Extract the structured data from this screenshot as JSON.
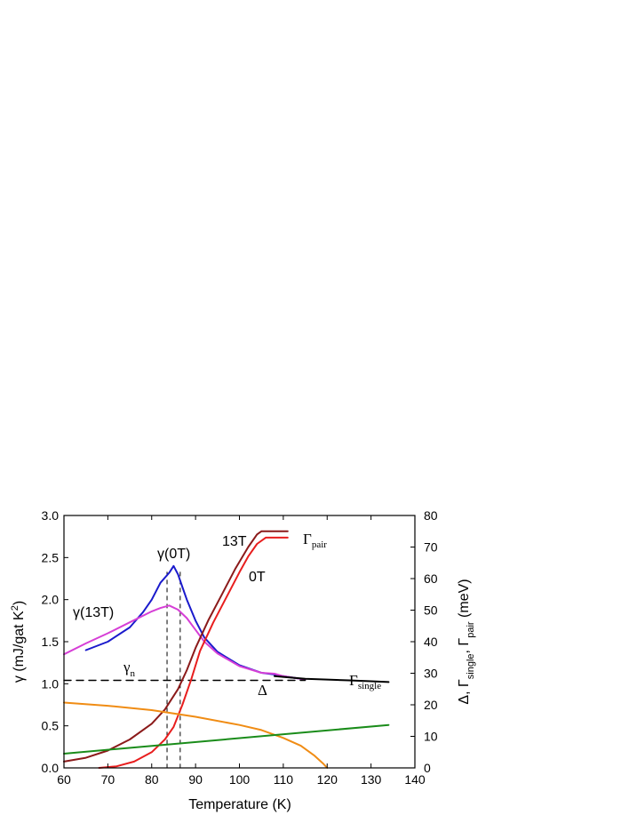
{
  "chart_data": {
    "type": "line",
    "x_axis": {
      "label": "Temperature (K)",
      "range": [
        60,
        140
      ],
      "ticks": [
        "60",
        "70",
        "80",
        "90",
        "100",
        "110",
        "120",
        "130",
        "140"
      ]
    },
    "y_axis_left": {
      "label": "γ (mJ/gat K²)",
      "label_main": "γ (mJ/gat K",
      "label_sup": "2",
      "label_end": ")",
      "range": [
        0,
        3
      ],
      "ticks": [
        "0.0",
        "0.5",
        "1.0",
        "1.5",
        "2.0",
        "2.5",
        "3.0"
      ]
    },
    "y_axis_right": {
      "label": "Δ, Γsingle, Γpair (meV)",
      "label_parts": [
        "Δ, Γ",
        "single",
        ", Γ",
        "pair",
        " (meV)"
      ],
      "range": [
        0,
        80
      ],
      "ticks": [
        "0",
        "10",
        "20",
        "30",
        "40",
        "50",
        "60",
        "70",
        "80"
      ]
    },
    "grid": false,
    "series": [
      {
        "name": "γ(0T)",
        "axis": "left",
        "color": "#1a1acc",
        "points": [
          [
            65,
            1.4
          ],
          [
            70,
            1.5
          ],
          [
            75,
            1.67
          ],
          [
            78,
            1.85
          ],
          [
            80,
            2.0
          ],
          [
            82,
            2.2
          ],
          [
            84,
            2.32
          ],
          [
            85,
            2.4
          ],
          [
            86,
            2.3
          ],
          [
            87,
            2.15
          ],
          [
            88,
            2.0
          ],
          [
            90,
            1.75
          ],
          [
            92,
            1.55
          ],
          [
            95,
            1.38
          ],
          [
            100,
            1.22
          ],
          [
            105,
            1.13
          ],
          [
            108,
            1.11
          ],
          [
            110,
            1.09
          ],
          [
            115,
            1.05
          ]
        ]
      },
      {
        "name": "γ(13T)",
        "axis": "left",
        "color": "#d63fd6",
        "points": [
          [
            60,
            1.35
          ],
          [
            65,
            1.48
          ],
          [
            70,
            1.6
          ],
          [
            75,
            1.73
          ],
          [
            80,
            1.86
          ],
          [
            82,
            1.9
          ],
          [
            84,
            1.93
          ],
          [
            86,
            1.88
          ],
          [
            88,
            1.78
          ],
          [
            90,
            1.64
          ],
          [
            92,
            1.5
          ],
          [
            95,
            1.36
          ],
          [
            100,
            1.21
          ],
          [
            105,
            1.13
          ],
          [
            108,
            1.12
          ],
          [
            110,
            1.09
          ],
          [
            115,
            1.05
          ]
        ]
      },
      {
        "name": "high-T tail",
        "axis": "left",
        "color": "#000000",
        "points": [
          [
            108,
            1.09
          ],
          [
            115,
            1.06
          ],
          [
            120,
            1.05
          ],
          [
            125,
            1.04
          ],
          [
            130,
            1.03
          ],
          [
            134,
            1.02
          ]
        ]
      },
      {
        "name": "γn",
        "axis": "left",
        "color": "#000000",
        "dashed": true,
        "points": [
          [
            60,
            1.04
          ],
          [
            115,
            1.04
          ]
        ]
      },
      {
        "name": "Γpair 13T",
        "axis": "right",
        "color": "#8b1a1a",
        "points": [
          [
            60,
            2
          ],
          [
            65,
            3.2
          ],
          [
            70,
            5.5
          ],
          [
            75,
            9
          ],
          [
            80,
            14
          ],
          [
            83,
            18.5
          ],
          [
            86,
            25
          ],
          [
            88,
            31
          ],
          [
            90,
            38
          ],
          [
            93,
            47
          ],
          [
            96,
            55
          ],
          [
            99,
            63
          ],
          [
            102,
            70
          ],
          [
            104,
            74
          ],
          [
            105,
            75
          ],
          [
            111,
            75
          ]
        ]
      },
      {
        "name": "Γpair 0T",
        "axis": "right",
        "color": "#e81e1e",
        "points": [
          [
            68,
            0
          ],
          [
            72,
            0.5
          ],
          [
            76,
            2
          ],
          [
            80,
            5
          ],
          [
            83,
            9
          ],
          [
            85,
            13
          ],
          [
            87,
            20
          ],
          [
            89,
            28
          ],
          [
            91,
            37
          ],
          [
            94,
            46
          ],
          [
            97,
            54
          ],
          [
            100,
            62
          ],
          [
            102,
            67
          ],
          [
            104,
            71
          ],
          [
            106,
            73
          ],
          [
            111,
            73
          ]
        ]
      },
      {
        "name": "Δ",
        "axis": "right",
        "color": "#f08c14",
        "points": [
          [
            60,
            20.7
          ],
          [
            70,
            19.7
          ],
          [
            80,
            18.3
          ],
          [
            90,
            16.2
          ],
          [
            100,
            13.6
          ],
          [
            105,
            12
          ],
          [
            110,
            9.5
          ],
          [
            114,
            7
          ],
          [
            117,
            4
          ],
          [
            119,
            1.5
          ],
          [
            120,
            0
          ]
        ]
      },
      {
        "name": "Γsingle",
        "axis": "right",
        "color": "#1a8c1a",
        "points": [
          [
            60,
            4.5
          ],
          [
            134,
            13.6
          ]
        ]
      }
    ],
    "vertical_markers": [
      83.5,
      86.5
    ],
    "annotations": {
      "gamma0T": "γ(0T)",
      "gamma13T": "γ(13T)",
      "gamma_n": "γ",
      "gamma_n_sub": "n",
      "label_13T": "13T",
      "label_0T": "0T",
      "delta": "Δ",
      "gamma_pair": "Γ",
      "gamma_pair_sub": "pair",
      "gamma_single": "Γ",
      "gamma_single_sub": "single"
    }
  }
}
